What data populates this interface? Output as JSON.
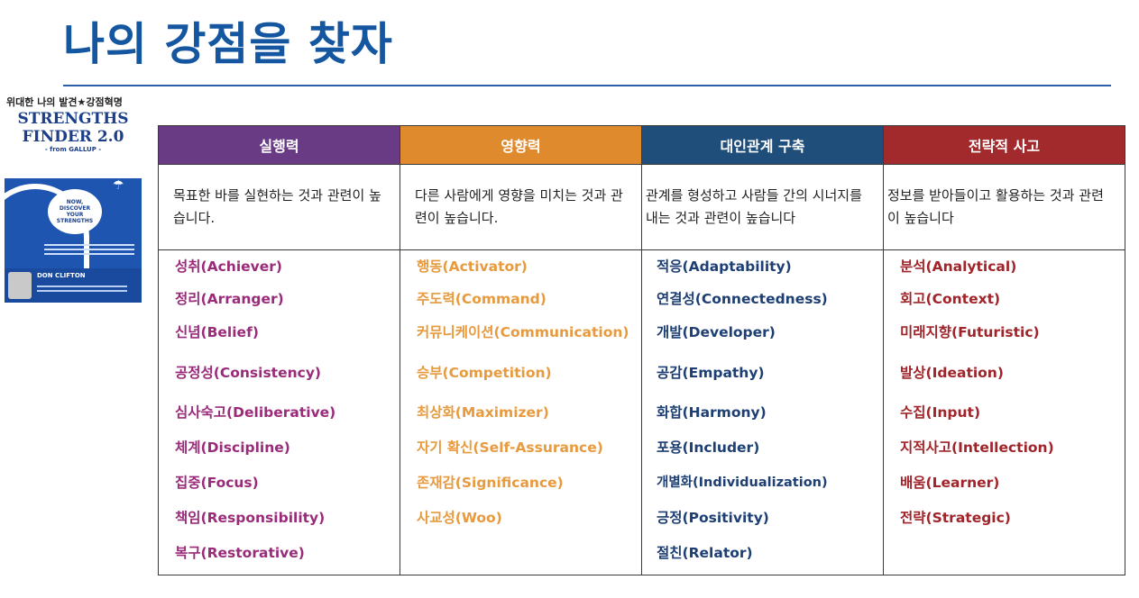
{
  "title": "나의 강점을 찾자",
  "book": {
    "subtitle": "위대한 나의 발견★강점혁명",
    "title_line1": "STRENGTHS",
    "title_line2": "FINDER 2.0",
    "from": "- from GALLUP -",
    "cloud_text": "NOW,\nDISCOVER\nYOUR\nSTRENGTHS",
    "author": "DON CLIFTON",
    "colors": {
      "cover": "#1e55b0",
      "title": "#1b3f8a"
    }
  },
  "colors": {
    "title": "#1456a0",
    "executing": "#6a3b85",
    "influencing": "#e08a2e",
    "relationship": "#1f4e7b",
    "strategic": "#a2292c"
  },
  "columns": [
    {
      "header": "실행력",
      "description": "목표한 바를 실현하는 것과 관련이 높습니다.",
      "items": [
        "성취(Achiever)",
        "정리(Arranger)",
        "신념(Belief)",
        "공정성(Consistency)",
        "심사숙고(Deliberative)",
        "체계(Discipline)",
        "집중(Focus)",
        "책임(Responsibility)",
        "복구(Restorative)"
      ]
    },
    {
      "header": "영향력",
      "description": "다른 사람에게 영향을 미치는 것과 관련이 높습니다.",
      "items": [
        "행동(Activator)",
        "주도력(Command)",
        "커뮤니케이션(Communication)",
        "승부(Competition)",
        "최상화(Maximizer)",
        "자기 확신(Self-Assurance)",
        "존재감(Significance)",
        "사교성(Woo)"
      ]
    },
    {
      "header": "대인관계 구축",
      "description": "관계를 형성하고 사람들 간의 시너지를 내는 것과 관련이 높습니다",
      "items": [
        "적응(Adaptability)",
        "연결성(Connectedness)",
        "개발(Developer)",
        "공감(Empathy)",
        "화합(Harmony)",
        "포용(Includer)",
        "개별화(Individualization)",
        "긍정(Positivity)",
        "절친(Relator)"
      ]
    },
    {
      "header": "전략적 사고",
      "description": "정보를 받아들이고 활용하는 것과 관련이 높습니다",
      "items": [
        "분석(Analytical)",
        "회고(Context)",
        "미래지향(Futuristic)",
        "발상(Ideation)",
        "수집(Input)",
        "지적사고(Intellection)",
        "배움(Learner)",
        "전략(Strategic)"
      ]
    }
  ]
}
